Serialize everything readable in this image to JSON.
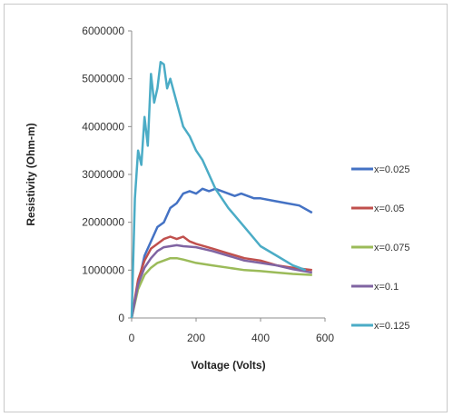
{
  "chart_data": {
    "type": "line",
    "title": "",
    "xlabel": "Voltage (Volts)",
    "ylabel": "Resistivity (Ohm-m)",
    "xlim": [
      0,
      600
    ],
    "ylim": [
      0,
      6000000
    ],
    "x_ticks": [
      "0",
      "200",
      "400",
      "600"
    ],
    "y_ticks": [
      "0",
      "1000000",
      "2000000",
      "3000000",
      "4000000",
      "5000000",
      "6000000"
    ],
    "grid": false,
    "legend_position": "right",
    "series": [
      {
        "name": "x=0.025",
        "color": "#4472C4",
        "points": [
          [
            0,
            0
          ],
          [
            20,
            700000
          ],
          [
            40,
            1300000
          ],
          [
            60,
            1600000
          ],
          [
            80,
            1900000
          ],
          [
            100,
            2000000
          ],
          [
            120,
            2300000
          ],
          [
            140,
            2400000
          ],
          [
            160,
            2600000
          ],
          [
            180,
            2650000
          ],
          [
            200,
            2600000
          ],
          [
            220,
            2700000
          ],
          [
            240,
            2650000
          ],
          [
            260,
            2700000
          ],
          [
            280,
            2650000
          ],
          [
            300,
            2600000
          ],
          [
            320,
            2550000
          ],
          [
            340,
            2600000
          ],
          [
            360,
            2550000
          ],
          [
            380,
            2500000
          ],
          [
            400,
            2500000
          ],
          [
            440,
            2450000
          ],
          [
            480,
            2400000
          ],
          [
            520,
            2350000
          ],
          [
            560,
            2200000
          ]
        ]
      },
      {
        "name": "x=0.05",
        "color": "#C0504D",
        "points": [
          [
            0,
            0
          ],
          [
            20,
            800000
          ],
          [
            40,
            1200000
          ],
          [
            60,
            1450000
          ],
          [
            80,
            1550000
          ],
          [
            100,
            1650000
          ],
          [
            120,
            1700000
          ],
          [
            140,
            1650000
          ],
          [
            160,
            1700000
          ],
          [
            180,
            1600000
          ],
          [
            200,
            1550000
          ],
          [
            250,
            1450000
          ],
          [
            300,
            1350000
          ],
          [
            350,
            1250000
          ],
          [
            400,
            1200000
          ],
          [
            450,
            1100000
          ],
          [
            500,
            1050000
          ],
          [
            560,
            1000000
          ]
        ]
      },
      {
        "name": "x=0.075",
        "color": "#9BBB59",
        "points": [
          [
            0,
            0
          ],
          [
            20,
            600000
          ],
          [
            40,
            900000
          ],
          [
            60,
            1050000
          ],
          [
            80,
            1150000
          ],
          [
            100,
            1200000
          ],
          [
            120,
            1250000
          ],
          [
            140,
            1250000
          ],
          [
            160,
            1220000
          ],
          [
            200,
            1150000
          ],
          [
            250,
            1100000
          ],
          [
            300,
            1050000
          ],
          [
            350,
            1000000
          ],
          [
            400,
            980000
          ],
          [
            450,
            950000
          ],
          [
            500,
            920000
          ],
          [
            560,
            900000
          ]
        ]
      },
      {
        "name": "x=0.1",
        "color": "#8064A2",
        "points": [
          [
            0,
            0
          ],
          [
            20,
            700000
          ],
          [
            40,
            1050000
          ],
          [
            60,
            1250000
          ],
          [
            80,
            1400000
          ],
          [
            100,
            1480000
          ],
          [
            120,
            1500000
          ],
          [
            140,
            1520000
          ],
          [
            160,
            1500000
          ],
          [
            200,
            1480000
          ],
          [
            250,
            1400000
          ],
          [
            300,
            1300000
          ],
          [
            350,
            1200000
          ],
          [
            400,
            1150000
          ],
          [
            450,
            1100000
          ],
          [
            500,
            1020000
          ],
          [
            560,
            950000
          ]
        ]
      },
      {
        "name": "x=0.125",
        "color": "#4BACC6",
        "points": [
          [
            0,
            0
          ],
          [
            10,
            2500000
          ],
          [
            20,
            3500000
          ],
          [
            30,
            3200000
          ],
          [
            40,
            4200000
          ],
          [
            50,
            3600000
          ],
          [
            60,
            5100000
          ],
          [
            70,
            4500000
          ],
          [
            80,
            4800000
          ],
          [
            90,
            5350000
          ],
          [
            100,
            5300000
          ],
          [
            110,
            4800000
          ],
          [
            120,
            5000000
          ],
          [
            140,
            4500000
          ],
          [
            160,
            4000000
          ],
          [
            180,
            3800000
          ],
          [
            200,
            3500000
          ],
          [
            220,
            3300000
          ],
          [
            240,
            3000000
          ],
          [
            260,
            2700000
          ],
          [
            300,
            2300000
          ],
          [
            350,
            1900000
          ],
          [
            400,
            1500000
          ],
          [
            450,
            1300000
          ],
          [
            500,
            1100000
          ],
          [
            540,
            1000000
          ]
        ]
      }
    ]
  }
}
